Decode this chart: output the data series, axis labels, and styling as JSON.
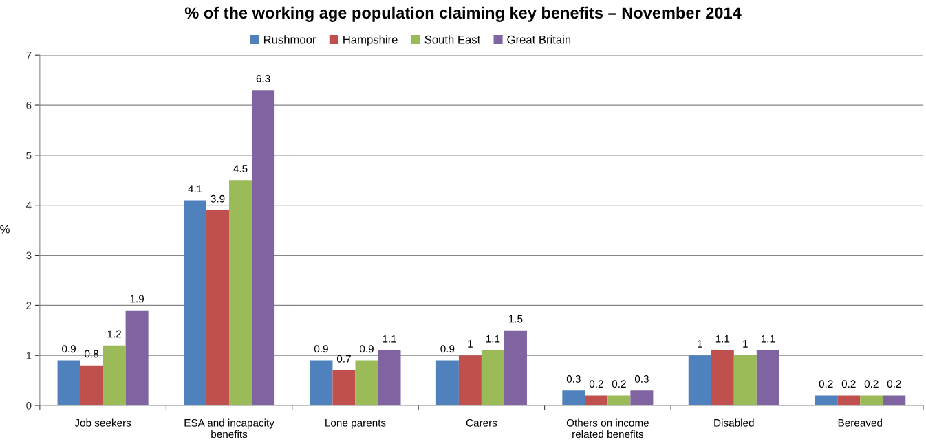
{
  "chart_data": {
    "type": "bar",
    "title": "% of the working age population claiming key benefits – November 2014",
    "ylabel": "%",
    "categories": [
      "Job seekers",
      "ESA and incapacity\nbenefits",
      "Lone parents",
      "Carers",
      "Others on income\nrelated benefits",
      "Disabled",
      "Bereaved"
    ],
    "series": [
      {
        "name": "Rushmoor",
        "color": "#4f81bd",
        "values": [
          0.9,
          4.1,
          0.9,
          0.9,
          0.3,
          1,
          0.2
        ]
      },
      {
        "name": "Hampshire",
        "color": "#c0504d",
        "values": [
          0.8,
          3.9,
          0.7,
          1,
          0.2,
          1.1,
          0.2
        ]
      },
      {
        "name": "South East",
        "color": "#9bbb59",
        "values": [
          1.2,
          4.5,
          0.9,
          1.1,
          0.2,
          1,
          0.2
        ]
      },
      {
        "name": "Great Britain",
        "color": "#8064a2",
        "values": [
          1.9,
          6.3,
          1.1,
          1.5,
          0.3,
          1.1,
          0.2
        ]
      }
    ],
    "ylim": [
      0,
      7
    ],
    "yticks": [
      0,
      1,
      2,
      3,
      4,
      5,
      6,
      7
    ],
    "grid": "y",
    "legend": "top",
    "data_labels": true
  }
}
